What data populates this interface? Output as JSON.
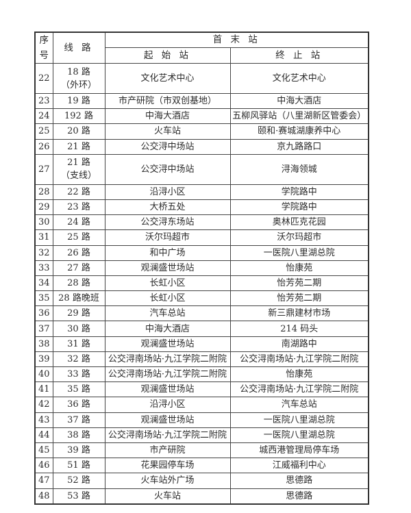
{
  "header": {
    "seq": "序号",
    "route": "线 路",
    "terminals": "首 末 站",
    "start": "起 始 站",
    "end": "终 止 站"
  },
  "rows": [
    {
      "seq": "22",
      "route": "18 路",
      "route_sub": "（外环）",
      "start": "文化艺术中心",
      "end": "文化艺术中心"
    },
    {
      "seq": "23",
      "route": "19 路",
      "start": "市产研院（市双创基地）",
      "end": "中海大酒店"
    },
    {
      "seq": "24",
      "route": "192 路",
      "start": "中海大酒店",
      "end": "五柳风驿站（八里湖新区管委会）"
    },
    {
      "seq": "25",
      "route": "20 路",
      "start": "火车站",
      "end": "颐和·赛城湖康养中心"
    },
    {
      "seq": "26",
      "route": "21 路",
      "start": "公交浔中场站",
      "end": "京九路路口"
    },
    {
      "seq": "27",
      "route": "21 路",
      "route_sub": "（支线）",
      "start": "公交浔中场站",
      "end": "浔海领城"
    },
    {
      "seq": "28",
      "route": "22 路",
      "start": "沿浔小区",
      "end": "学院路中"
    },
    {
      "seq": "29",
      "route": "23 路",
      "start": "大桥五处",
      "end": "学院路中"
    },
    {
      "seq": "30",
      "route": "24 路",
      "start": "公交浔东场站",
      "end": "奥林匹克花园"
    },
    {
      "seq": "31",
      "route": "25 路",
      "start": "沃尔玛超市",
      "end": "沃尔玛超市"
    },
    {
      "seq": "32",
      "route": "26 路",
      "start": "和中广场",
      "end": "一医院八里湖总院"
    },
    {
      "seq": "33",
      "route": "27 路",
      "start": "观澜盛世场站",
      "end": "怡康苑"
    },
    {
      "seq": "34",
      "route": "28 路",
      "start": "长虹小区",
      "end": "怡芳苑二期"
    },
    {
      "seq": "35",
      "route": "28 路晚班",
      "start": "长虹小区",
      "end": "怡芳苑二期"
    },
    {
      "seq": "36",
      "route": "29 路",
      "start": "汽车总站",
      "end": "新三鼎建材市场"
    },
    {
      "seq": "37",
      "route": "30 路",
      "start": "中海大酒店",
      "end": "214 码头"
    },
    {
      "seq": "38",
      "route": "31 路",
      "start": "观澜盛世场站",
      "end": "南湖路中"
    },
    {
      "seq": "39",
      "route": "32 路",
      "start": "公交浔南场站·九江学院二附院",
      "end": "公交浔南场站·九江学院二附院"
    },
    {
      "seq": "40",
      "route": "33 路",
      "start": "公交浔南场站·九江学院二附院",
      "end": "怡康苑"
    },
    {
      "seq": "41",
      "route": "35 路",
      "start": "观澜盛世场站",
      "end": "公交浔南场站·九江学院二附院"
    },
    {
      "seq": "42",
      "route": "36 路",
      "start": "沿浔小区",
      "end": "汽车总站"
    },
    {
      "seq": "43",
      "route": "37 路",
      "start": "观澜盛世场站",
      "end": "一医院八里湖总院"
    },
    {
      "seq": "44",
      "route": "38 路",
      "start": "公交浔南场站·九江学院二附院",
      "end": "一医院八里湖总院"
    },
    {
      "seq": "45",
      "route": "39 路",
      "start": "市产研院",
      "end": "城西港管理局停车场"
    },
    {
      "seq": "46",
      "route": "51 路",
      "start": "花果园停车场",
      "end": "江威福利中心"
    },
    {
      "seq": "47",
      "route": "52 路",
      "start": "火车站外广场",
      "end": "思德路"
    },
    {
      "seq": "48",
      "route": "53 路",
      "start": "火车站",
      "end": "思德路"
    }
  ]
}
